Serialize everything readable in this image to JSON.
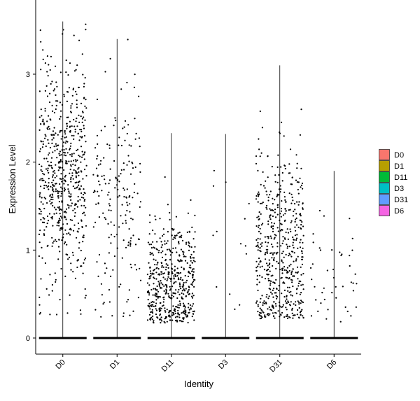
{
  "chart_data": {
    "type": "scatter",
    "subtype": "violin-jitter",
    "title": "",
    "xlabel": "Identity",
    "ylabel": "Expression Level",
    "categories": [
      "D0",
      "D1",
      "D11",
      "D3",
      "D31",
      "D6"
    ],
    "yticks": [
      0,
      1,
      2,
      3
    ],
    "ylim": [
      -0.18,
      3.7
    ],
    "legend": {
      "position": "right",
      "entries": [
        {
          "label": "D0",
          "color": "#F8766D"
        },
        {
          "label": "D1",
          "color": "#B79F00"
        },
        {
          "label": "D11",
          "color": "#00BA38"
        },
        {
          "label": "D3",
          "color": "#00BFC4"
        },
        {
          "label": "D31",
          "color": "#619CFF"
        },
        {
          "label": "D6",
          "color": "#F564E3"
        }
      ]
    },
    "groups": [
      {
        "name": "D0",
        "max": 3.6,
        "nonzero_n": 620,
        "mean": 1.85,
        "sd": 0.65,
        "min": 0.25
      },
      {
        "name": "D1",
        "max": 3.4,
        "nonzero_n": 190,
        "mean": 1.5,
        "sd": 0.6,
        "min": 0.2
      },
      {
        "name": "D11",
        "max": 2.33,
        "nonzero_n": 520,
        "mean": 0.6,
        "sd": 0.35,
        "min": 0.17
      },
      {
        "name": "D3",
        "max": 2.32,
        "nonzero_n": 14,
        "mean": 0.9,
        "sd": 0.5,
        "min": 0.2
      },
      {
        "name": "D31",
        "max": 3.1,
        "nonzero_n": 560,
        "mean": 0.95,
        "sd": 0.6,
        "min": 0.22
      },
      {
        "name": "D6",
        "max": 1.9,
        "nonzero_n": 45,
        "mean": 0.6,
        "sd": 0.35,
        "min": 0.15
      }
    ]
  }
}
